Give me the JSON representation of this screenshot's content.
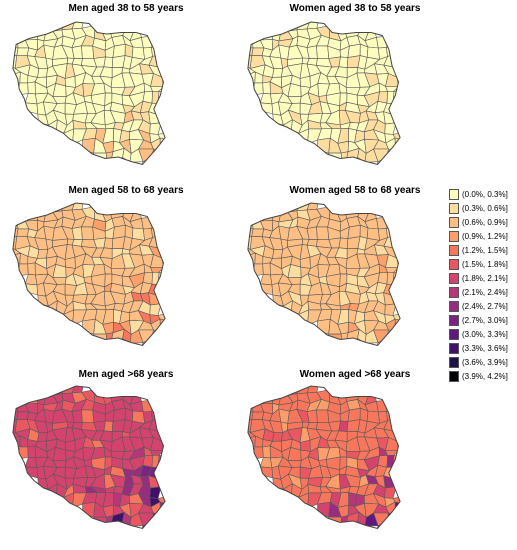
{
  "chart_data": {
    "type": "choropleth",
    "panels": [
      {
        "title": "Men aged 38 to 58 years",
        "base_bin": 0,
        "hot_bins": [
          1,
          2
        ]
      },
      {
        "title": "Women aged 38 to 58 years",
        "base_bin": 0,
        "hot_bins": [
          1
        ]
      },
      {
        "title": "Men aged 58 to 68 years",
        "base_bin": 2,
        "hot_bins": [
          1,
          3,
          4
        ]
      },
      {
        "title": "Women aged 58 to 68 years",
        "base_bin": 2,
        "hot_bins": [
          1,
          3
        ]
      },
      {
        "title": "Men aged >68 years",
        "base_bin": 6,
        "hot_bins": [
          4,
          5,
          7,
          8,
          9,
          11
        ]
      },
      {
        "title": "Women aged >68 years",
        "base_bin": 4,
        "hot_bins": [
          3,
          5,
          6,
          7,
          8,
          10
        ]
      }
    ],
    "legend": {
      "placement": "right",
      "bins": [
        {
          "label": "(0.0%, 0.3%]",
          "color": "#FCFDBF"
        },
        {
          "label": "(0.3%, 0.6%]",
          "color": "#FDDEA0"
        },
        {
          "label": "(0.6%, 0.9%]",
          "color": "#FEBF84"
        },
        {
          "label": "(0.9%, 1.2%]",
          "color": "#FC9F6A"
        },
        {
          "label": "(1.2%, 1.5%]",
          "color": "#F8765C"
        },
        {
          "label": "(1.5%, 1.8%]",
          "color": "#EB5760"
        },
        {
          "label": "(1.8%, 2.1%]",
          "color": "#D3436E"
        },
        {
          "label": "(2.1%, 2.4%]",
          "color": "#B63679"
        },
        {
          "label": "(2.4%, 2.7%]",
          "color": "#982D80"
        },
        {
          "label": "(2.7%, 3.0%]",
          "color": "#7B2382"
        },
        {
          "label": "(3.0%, 3.3%]",
          "color": "#5F187F"
        },
        {
          "label": "(3.3%, 3.6%]",
          "color": "#40106A"
        },
        {
          "label": "(3.6%, 3.9%]",
          "color": "#1D1147"
        },
        {
          "label": "(3.9%, 4.2%]",
          "color": "#000004"
        }
      ]
    }
  }
}
